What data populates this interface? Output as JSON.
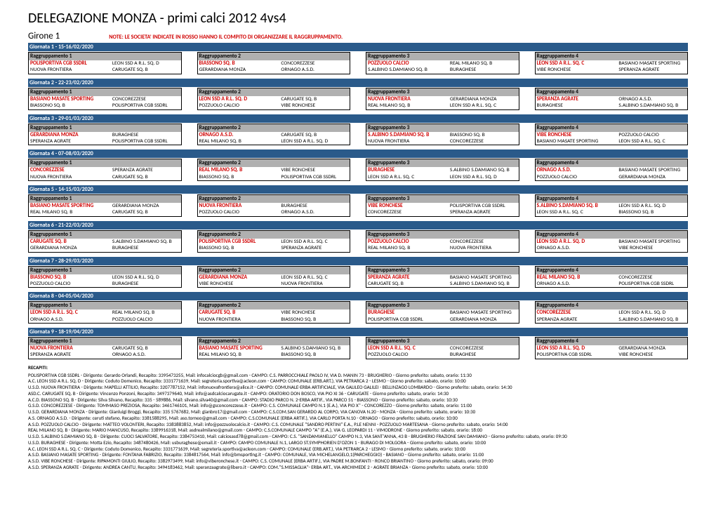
{
  "title": "DELEGAZIONE MONZA - primi calci 2012 4vs4",
  "girone": "Girone 1",
  "note": "NOTE: LE SOCIETA' INDICATE IN ROSSO HANNO IL COMPITO DI ORGANIZZARE IL RAGGRUPPAMENTO.",
  "colors": {
    "header_bg": "#2a5a8a",
    "group_header_bg": "#b0b0b0",
    "org_text": "#d00000"
  },
  "giornate": [
    {
      "label": "Giornata 1 - 15-16/02/2020",
      "groups": [
        {
          "title": "Raggruppamento 1",
          "rows": [
            [
              "POLISPORTIVA CGB SSDRL",
              true,
              "LEON SSD A R.L. SQ. D"
            ],
            [
              "NUOVA FRONTIERA",
              false,
              "CARUGATE SQ. B"
            ]
          ]
        },
        {
          "title": "Raggruppamento 2",
          "rows": [
            [
              "BIASSONO SQ. B",
              true,
              "CONCOREZZESE"
            ],
            [
              "GERARDIANA MONZA",
              false,
              "ORNAGO A.S.D."
            ]
          ]
        },
        {
          "title": "Raggruppamento 3",
          "rows": [
            [
              "POZZUOLO CALCIO",
              true,
              "REAL MILANO SQ. B"
            ],
            [
              "S.ALBINO S.DAMIANO SQ. B",
              false,
              "BURAGHESE"
            ]
          ]
        },
        {
          "title": "Raggruppamento 4",
          "rows": [
            [
              "LEON SSD A R.L. SQ. C",
              true,
              "BASIANO MASATE SPORTING"
            ],
            [
              "VIBE RONCHESE",
              false,
              "SPERANZA AGRATE"
            ]
          ]
        }
      ]
    },
    {
      "label": "Giornata 2 - 22-23/02/2020",
      "groups": [
        {
          "title": "Raggruppamento 1",
          "rows": [
            [
              "BASIANO MASATE SPORTING",
              true,
              "CONCOREZZESE"
            ],
            [
              "BIASSONO SQ. B",
              false,
              "POLISPORTIVA CGB SSDRL"
            ]
          ]
        },
        {
          "title": "Raggruppamento 2",
          "rows": [
            [
              "LEON SSD A R.L. SQ. D",
              true,
              "CARUGATE SQ. B"
            ],
            [
              "POZZUOLO CALCIO",
              false,
              "VIBE RONCHESE"
            ]
          ]
        },
        {
          "title": "Raggruppamento 3",
          "rows": [
            [
              "NUOVA FRONTIERA",
              true,
              "GERARDIANA MONZA"
            ],
            [
              "REAL MILANO SQ. B",
              false,
              "LEON SSD A R.L. SQ. C"
            ]
          ]
        },
        {
          "title": "Raggruppamento 4",
          "rows": [
            [
              "SPERANZA AGRATE",
              true,
              "ORNAGO A.S.D."
            ],
            [
              "BURAGHESE",
              false,
              "S.ALBINO S.DAMIANO SQ. B"
            ]
          ]
        }
      ]
    },
    {
      "label": "Giornata 3 - 29-01/03/2020",
      "groups": [
        {
          "title": "Raggruppamento 1",
          "rows": [
            [
              "GERARDIANA MONZA",
              true,
              "BURAGHESE"
            ],
            [
              "SPERANZA AGRATE",
              false,
              "POLISPORTIVA CGB SSDRL"
            ]
          ]
        },
        {
          "title": "Raggruppamento 2",
          "rows": [
            [
              "ORNAGO A.S.D.",
              true,
              "CARUGATE SQ. B"
            ],
            [
              "REAL MILANO SQ. B",
              false,
              "LEON SSD A R.L. SQ. D"
            ]
          ]
        },
        {
          "title": "Raggruppamento 3",
          "rows": [
            [
              "S.ALBINO S.DAMIANO SQ. B",
              true,
              "BIASSONO SQ. B"
            ],
            [
              "NUOVA FRONTIERA",
              false,
              "CONCOREZZESE"
            ]
          ]
        },
        {
          "title": "Raggruppamento 4",
          "rows": [
            [
              "VIBE RONCHESE",
              true,
              "POZZUOLO CALCIO"
            ],
            [
              "BASIANO MASATE SPORTING",
              false,
              "LEON SSD A R.L. SQ. C"
            ]
          ]
        }
      ]
    },
    {
      "label": "Giornata 4 - 07-08/03/2020",
      "groups": [
        {
          "title": "Raggruppamento 1",
          "rows": [
            [
              "CONCOREZZESE",
              true,
              "SPERANZA AGRATE"
            ],
            [
              "NUOVA FRONTIERA",
              false,
              "CARUGATE SQ. B"
            ]
          ]
        },
        {
          "title": "Raggruppamento 2",
          "rows": [
            [
              "REAL MILANO SQ. B",
              true,
              "VIBE RONCHESE"
            ],
            [
              "BIASSONO SQ. B",
              false,
              "POLISPORTIVA CGB SSDRL"
            ]
          ]
        },
        {
          "title": "Raggruppamento 3",
          "rows": [
            [
              "BURAGHESE",
              true,
              "S.ALBINO S.DAMIANO SQ. B"
            ],
            [
              "LEON SSD A R.L. SQ. C",
              false,
              "LEON SSD A R.L. SQ. D"
            ]
          ]
        },
        {
          "title": "Raggruppamento 4",
          "rows": [
            [
              "ORNAGO A.S.D.",
              true,
              "BASIANO MASATE SPORTING"
            ],
            [
              "POZZUOLO CALCIO",
              false,
              "GERARDIANA MONZA"
            ]
          ]
        }
      ]
    },
    {
      "label": "Giornata 5 - 14-15/03/2020",
      "groups": [
        {
          "title": "Raggruppamento 1",
          "rows": [
            [
              "BASIANO MASATE SPORTING",
              true,
              "GERARDIANA MONZA"
            ],
            [
              "REAL MILANO SQ. B",
              false,
              "CARUGATE SQ. B"
            ]
          ]
        },
        {
          "title": "Raggruppamento 2",
          "rows": [
            [
              "NUOVA FRONTIERA",
              true,
              "BURAGHESE"
            ],
            [
              "POZZUOLO CALCIO",
              false,
              "ORNAGO A.S.D."
            ]
          ]
        },
        {
          "title": "Raggruppamento 3",
          "rows": [
            [
              "VIBE RONCHESE",
              true,
              "POLISPORTIVA CGB SSDRL"
            ],
            [
              "CONCOREZZESE",
              false,
              "SPERANZA AGRATE"
            ]
          ]
        },
        {
          "title": "Raggruppamento 4",
          "rows": [
            [
              "S.ALBINO S.DAMIANO SQ. B",
              true,
              "LEON SSD A R.L. SQ. D"
            ],
            [
              "LEON SSD A R.L. SQ. C",
              false,
              "BIASSONO SQ. B"
            ]
          ]
        }
      ]
    },
    {
      "label": "Giornata 6 - 21-22/03/2020",
      "groups": [
        {
          "title": "Raggruppamento 1",
          "rows": [
            [
              "CARUGATE SQ. B",
              true,
              "S.ALBINO S.DAMIANO SQ. B"
            ],
            [
              "GERARDIANA MONZA",
              false,
              "BURAGHESE"
            ]
          ]
        },
        {
          "title": "Raggruppamento 2",
          "rows": [
            [
              "POLISPORTIVA CGB SSDRL",
              true,
              "LEON SSD A R.L. SQ. C"
            ],
            [
              "BIASSONO SQ. B",
              false,
              "SPERANZA AGRATE"
            ]
          ]
        },
        {
          "title": "Raggruppamento 3",
          "rows": [
            [
              "POZZUOLO CALCIO",
              true,
              "CONCOREZZESE"
            ],
            [
              "REAL MILANO SQ. B",
              false,
              "NUOVA FRONTIERA"
            ]
          ]
        },
        {
          "title": "Raggruppamento 4",
          "rows": [
            [
              "LEON SSD A R.L. SQ. D",
              true,
              "BASIANO MASATE SPORTING"
            ],
            [
              "ORNAGO A.S.D.",
              false,
              "VIBE RONCHESE"
            ]
          ]
        }
      ]
    },
    {
      "label": "Giornata 7 - 28-29/03/2020",
      "groups": [
        {
          "title": "Raggruppamento 1",
          "rows": [
            [
              "BIASSONO SQ. B",
              true,
              "LEON SSD A R.L. SQ. D"
            ],
            [
              "POZZUOLO CALCIO",
              false,
              "BURAGHESE"
            ]
          ]
        },
        {
          "title": "Raggruppamento 2",
          "rows": [
            [
              "GERARDIANA MONZA",
              true,
              "LEON SSD A R.L. SQ. C"
            ],
            [
              "VIBE RONCHESE",
              false,
              "NUOVA FRONTIERA"
            ]
          ]
        },
        {
          "title": "Raggruppamento 3",
          "rows": [
            [
              "SPERANZA AGRATE",
              true,
              "BASIANO MASATE SPORTING"
            ],
            [
              "CARUGATE SQ. B",
              false,
              "S.ALBINO S.DAMIANO SQ. B"
            ]
          ]
        },
        {
          "title": "Raggruppamento 4",
          "rows": [
            [
              "REAL MILANO SQ. B",
              true,
              "CONCOREZZESE"
            ],
            [
              "ORNAGO A.S.D.",
              false,
              "POLISPORTIVA CGB SSDRL"
            ]
          ]
        }
      ]
    },
    {
      "label": "Giornata 8 - 04-05/04/2020",
      "groups": [
        {
          "title": "Raggruppamento 1",
          "rows": [
            [
              "LEON SSD A R.L. SQ. C",
              true,
              "REAL MILANO SQ. B"
            ],
            [
              "ORNAGO A.S.D.",
              false,
              "POZZUOLO CALCIO"
            ]
          ]
        },
        {
          "title": "Raggruppamento 2",
          "rows": [
            [
              "CARUGATE SQ. B",
              true,
              "VIBE RONCHESE"
            ],
            [
              "NUOVA FRONTIERA",
              false,
              "BIASSONO SQ. B"
            ]
          ]
        },
        {
          "title": "Raggruppamento 3",
          "rows": [
            [
              "BURAGHESE",
              true,
              "BASIANO MASATE SPORTING"
            ],
            [
              "POLISPORTIVA CGB SSDRL",
              false,
              "GERARDIANA MONZA"
            ]
          ]
        },
        {
          "title": "Raggruppamento 4",
          "rows": [
            [
              "CONCOREZZESE",
              true,
              "LEON SSD A R.L. SQ. D"
            ],
            [
              "SPERANZA AGRATE",
              false,
              "S.ALBINO S.DAMIANO SQ. B"
            ]
          ]
        }
      ]
    },
    {
      "label": "Giornata 9 - 18-19/04/2020",
      "groups": [
        {
          "title": "Raggruppamento 1",
          "rows": [
            [
              "NUOVA FRONTIERA",
              true,
              "CARUGATE SQ. B"
            ],
            [
              "SPERANZA AGRATE",
              false,
              "ORNAGO A.S.D."
            ]
          ]
        },
        {
          "title": "Raggruppamento 2",
          "rows": [
            [
              "BASIANO MASATE SPORTING",
              true,
              "S.ALBINO S.DAMIANO SQ. B"
            ],
            [
              "REAL MILANO SQ. B",
              false,
              "BIASSONO SQ. B"
            ]
          ]
        },
        {
          "title": "Raggruppamento 3",
          "rows": [
            [
              "LEON SSD A R.L. SQ. C",
              true,
              "CONCOREZZESE"
            ],
            [
              "POZZUOLO CALCIO",
              false,
              "BURAGHESE"
            ]
          ]
        },
        {
          "title": "Raggruppamento 4",
          "rows": [
            [
              "LEON SSD A R.L. SQ. D",
              true,
              "GERARDIANA MONZA"
            ],
            [
              "POLISPORTIVA CGB SSDRL",
              false,
              "VIBE RONCHESE"
            ]
          ]
        }
      ]
    }
  ],
  "recapiti_title": "RECAPITI:",
  "recapiti": [
    "POLISPORTIVA CGB SSDRL - Dirigente: Gerardo Orlandi, Recapito: 3395473255, Mail: infocalciocgb@gmail.com - CAMPO: C.S. PARROCCHIALE PAOLO IV, VIA D. MANIN 73 - BRUGHERIO - Giorno preferito: sabato, orario: 11:30",
    "A.C. LEON SSD A R.L. SQ. D - Dirigente: Coduto Domenico, Recapito: 3331771639, Mail: segreteria.sportiva@acleon.com - CAMPO: COMUNALE (ERB.ART.), VIA PETRARCA 2 - LESMO - Giorno preferito: sabato, orario: 10:00",
    "U.S.D. NUOVA FRONTIERA - Dirigente: MAPELLI ATTILIO, Recapito: 3207787152, Mail: infonuovafrontiera@alice.it - CAMPO: COMUNALE-ERBA ARTIFICIALE, VIA GALILEO GALILEI - BELLINZAGO LOMBARDO - Giorno preferito: sabato, orario: 14:30",
    "ASD.C. CARUGATE SQ. B - Dirigente: Vincenzo Ponzoni, Recapito: 3497379640, Mail: info@asdcalciocarugate.it - CAMPO: ORATORIO DON BOSCO, VIA PIO XI 36 - CARUGATE - Giorno preferito: sabato, orario: 14:30",
    "A.C.D. BIASSONO SQ. B - Dirigente: Silva Silvano, Recapito: 335 - 589886, Mail: silvano.silva40@gmail.com - CAMPO: STADIO PARCO N. 2-ERBA ARTIF., VIA PARCO 51 - BIASSONO - Giorno preferito: sabato, orario: 10:30",
    "G.S.D. CONCOREZZESE - Dirigente: TOMMASO PREZIOSA, Recapito: 3461746101, Mail: info@gsconcorezzese.it - CAMPO: C.S. COMUNALE CAMPO N.1 (E.A.), VIA PIO X'' - CONCOREZZO - Giorno preferito: sabato, orario: 11:00",
    "U.S.D. GERARDIANA MONZA - Dirigente: Gianluigi Broggi, Recapito: 335 5767682, Mail: gianbro17@gmail.com - CAMPO: C.S.COM.SAN GERARDO AL CORPO, VIA CANOVA N.20 - MONZA - Giorno preferito: sabato, orario: 10:30",
    "A.S. ORNAGO A.S.D. - Dirigente: ceruti stefano, Recapito: 3381588295, Mail: aso.torneo@gmail.com - CAMPO: C.S.COMUNALE (ERBA ARTIF.), VIA CARLO PORTA N.10 - ORNAGO - Giorno preferito: sabato, orario: 10:00",
    "A.S.D. POZZUOLO CALCIO - Dirigente: MATTEO VOLONTERI, Recapito: 3383883852, Mail: info@pozzuolocalcio.it - CAMPO: C.S. COMUNALE \"SANDRO PERTINI\" E.A., P.LE NENNI - POZZUOLO MARTESANA - Giorno preferito: sabato, orario: 14:00",
    "REAL MILANO SQ. B - Dirigente: MARIO MANCUSO, Recapito: 3389916318, Mail: asdrealmilano@gmail.com - CAMPO: C.S.COMUNALE CAMPO \"A\" (E.A.), VIA G. LEOPARDI 11 - VIMODRONE - Giorno preferito: sabato, orario: 18:00",
    "U.S.D. S.ALBINO S.DAMIANO SQ. B - Dirigente: CUOCI SALVATORE, Recapito: 3384753410, Mail: calciosasd78@gmail.com - CAMPO: C.S. \"SANDAMIANELLO\" CAMPO N.3, VIA SANT'ANNA, 43 B - BRUGHERIO FRAZIONE SAN DAMIANO - Giorno preferito: sabato, orario: 09:30",
    "U.S.D. BURAGHESE - Dirigente: Motta Ezio, Recapito: 3487480426, Mail: usburaghese@email.it - CAMPO: CAMPO COMUNALE N.1, LARGO ST.SYMPHORIEN D'OZON 1 - BURAGO DI MOLGORA - Giorno preferito: sabato, orario: 10:00",
    "A.C. LEON SSD A R.L. SQ. C - Dirigente: Coduto Domenico, Recapito: 3331771639, Mail: segreteria.sportiva@acleon.com - CAMPO: COMUNALE (ERB.ART.), VIA PETRARCA 2 - LESMO - Giorno preferito: sabato, orario: 10:00",
    "A.S.D. BASIANO MASATE SPORTING - Dirigente: FONTANA FABRIZIO, Recapito: 3384817564, Mail: info@bmsporting.it - CAMPO: COMUNALE, VIA MICHELANGELO,1(PARCHEGGIO) - BASIANO - Giorno preferito: sabato, orario: 11:00",
    "A.S.D. VIBE RONCHESE - Dirigente: RIPAMONTI GIULIO, Recapito: 3382973499, Mail: info@viberonchese.it - CAMPO: C.S. COMUNALE (ERBA ARTIF.), VIA PADRE M.BONFANTI - RONCO BRIANTINO - Giorno preferito: sabato, orario: 09:00",
    "A.S.D. SPERANZA AGRATE - Dirigente: ANDREA CANTU, Recapito: 3494183462, Mail: speranzaagrate@libero.it - CAMPO: COM.\"S.MISSAGLIA\"- ERBA ART., VIA ARCHIMEDE 2 - AGRATE BRIANZA - Giorno preferito: sabato, orario: 10:00"
  ]
}
